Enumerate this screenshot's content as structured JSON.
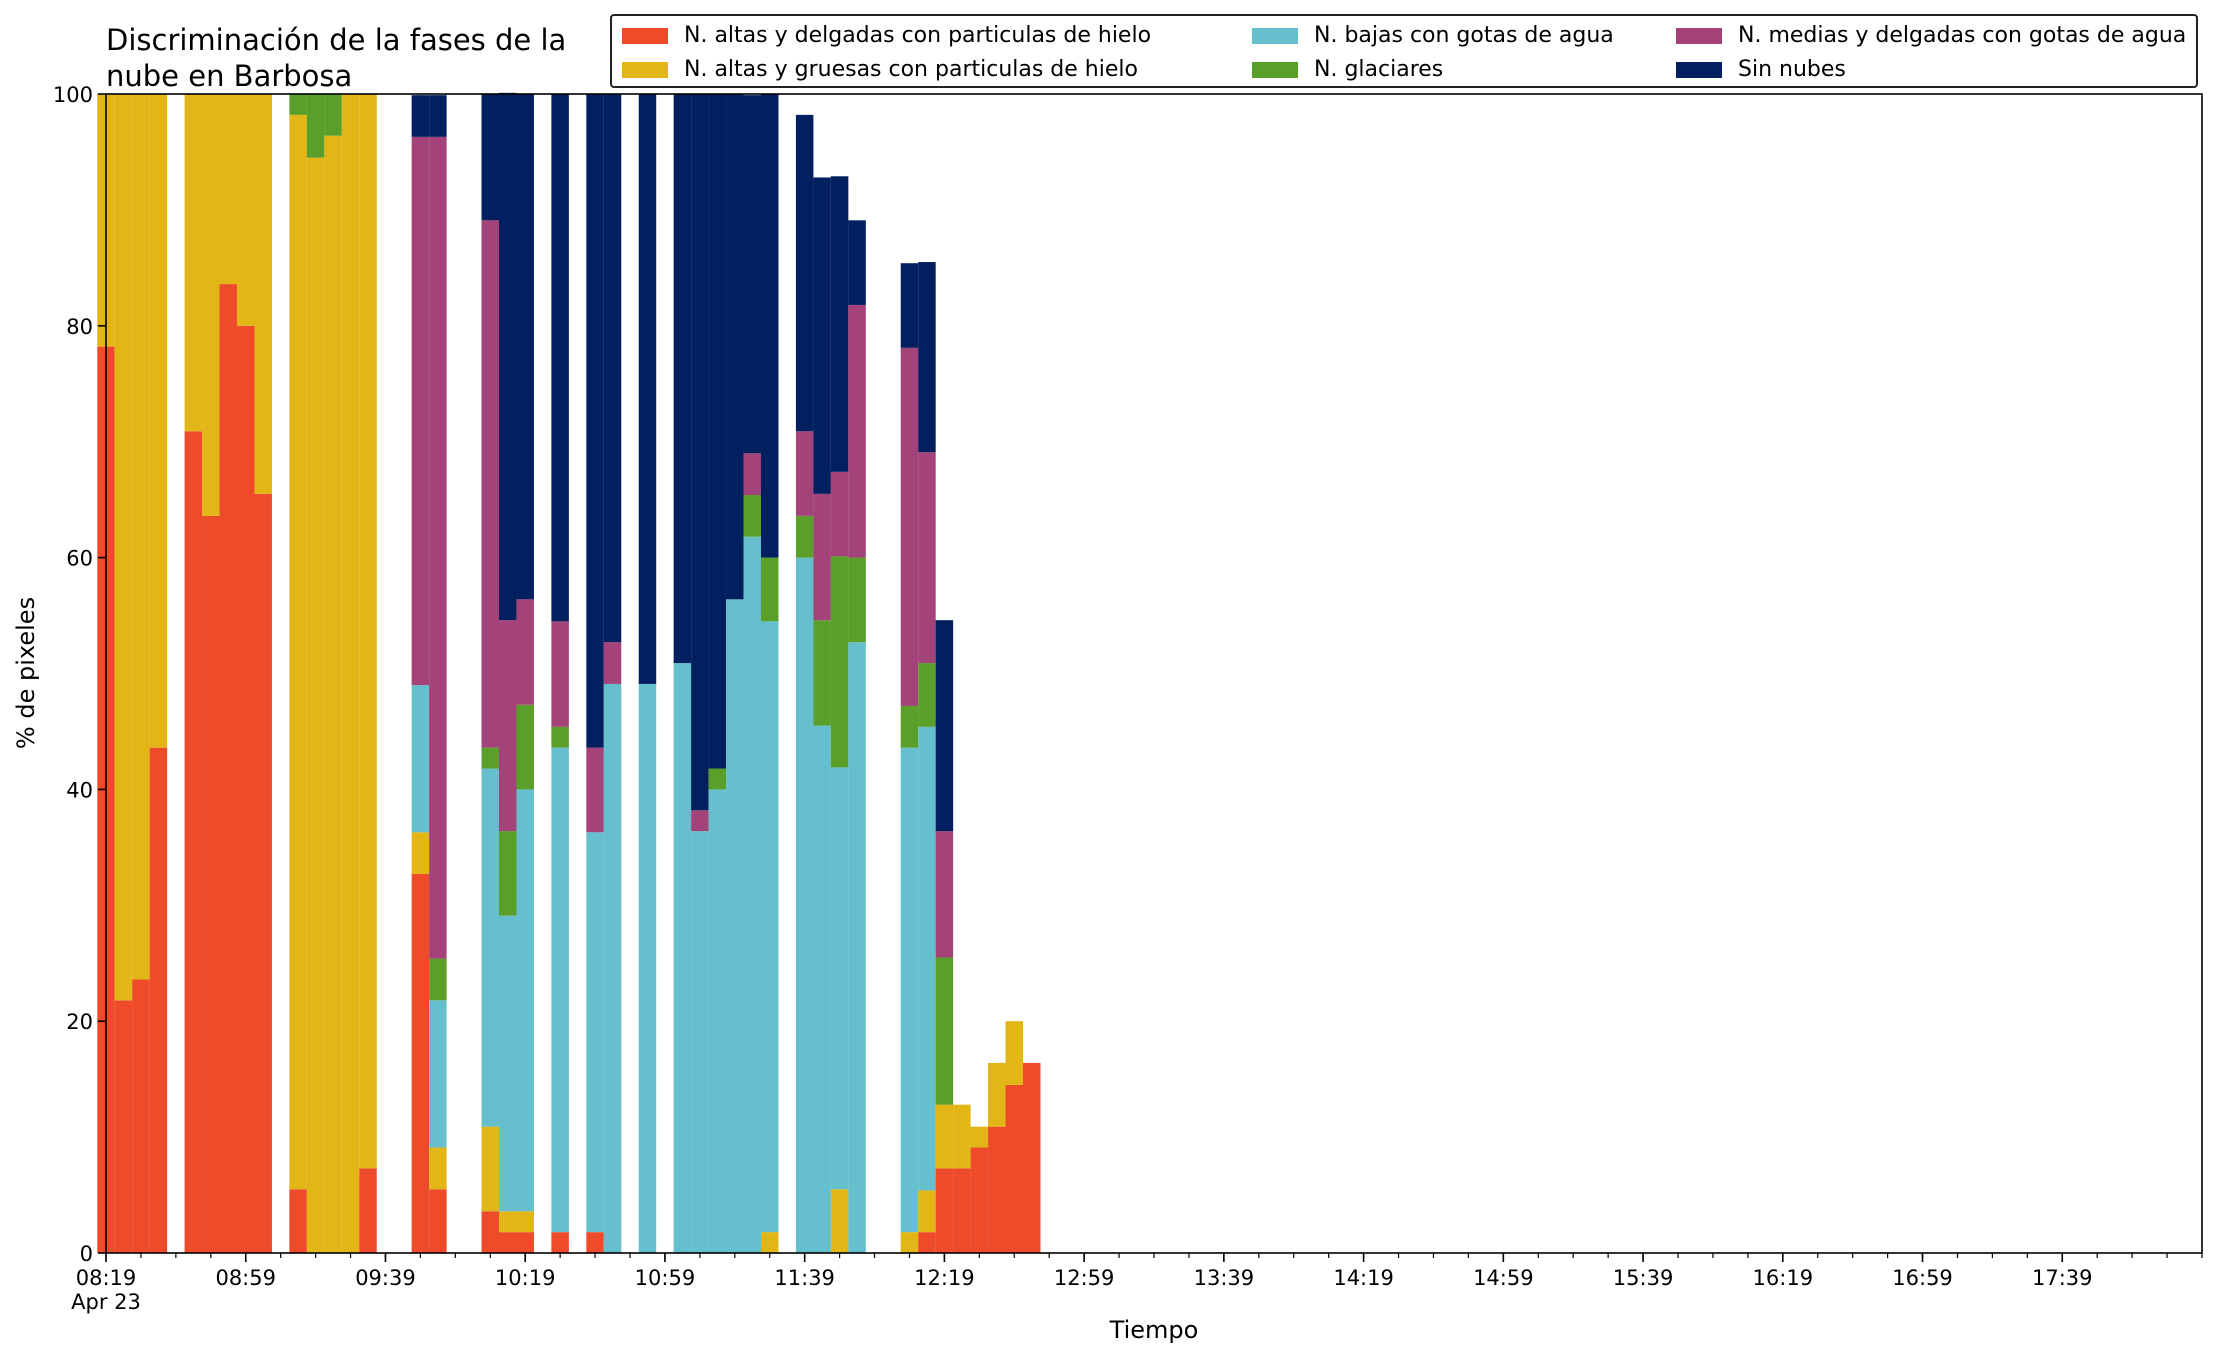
{
  "title": "Discriminación de la fases de la\nnube en Barbosa",
  "chart_data": {
    "type": "bar",
    "stacked": true,
    "title": "Discriminación de la fases de la\nnube en Barbosa",
    "xlabel": "Tiempo",
    "ylabel": "% de pixeles",
    "ylim": [
      0,
      100
    ],
    "yticks": [
      0,
      20,
      40,
      60,
      80,
      100
    ],
    "grid": false,
    "legend_position": "top-right",
    "x_start": "08:19",
    "x_end": "18:19",
    "x_tick_labels": [
      "08:19",
      "08:59",
      "09:39",
      "10:19",
      "10:59",
      "11:39",
      "12:19",
      "12:59",
      "13:39",
      "14:19",
      "14:59",
      "15:39",
      "16:19",
      "16:59",
      "17:39"
    ],
    "x_date_label": "Apr 23",
    "times": [
      "08:19",
      "08:24",
      "08:29",
      "08:34",
      "08:44",
      "08:49",
      "08:54",
      "08:59",
      "09:04",
      "09:14",
      "09:19",
      "09:24",
      "09:29",
      "09:34",
      "09:49",
      "09:54",
      "10:09",
      "10:14",
      "10:19",
      "10:29",
      "10:39",
      "10:44",
      "10:54",
      "11:04",
      "11:09",
      "11:14",
      "11:19",
      "11:24",
      "11:29",
      "11:39",
      "11:44",
      "11:49",
      "11:54",
      "12:09",
      "12:14",
      "12:19",
      "12:24",
      "12:29",
      "12:34",
      "12:39",
      "12:44",
      "12:54",
      "12:59",
      "13:04"
    ],
    "series": [
      {
        "name": "N. altas y delgadas con particulas de hielo",
        "color": "#ee4b2b",
        "values": [
          78.2,
          21.8,
          23.6,
          43.6,
          70.9,
          63.6,
          83.6,
          80.0,
          65.5,
          5.5,
          0,
          0,
          0,
          7.3,
          32.7,
          5.5,
          3.6,
          1.8,
          1.8,
          1.8,
          1.8,
          0,
          0,
          0,
          0,
          0,
          0,
          0,
          0,
          0,
          0,
          0,
          0,
          0,
          1.8,
          7.3,
          7.3,
          9.1,
          10.9,
          14.5,
          16.4,
          0,
          0,
          0
        ]
      },
      {
        "name": "N. altas y gruesas con particulas de hielo",
        "color": "#e3b617",
        "values": [
          21.8,
          78.2,
          76.4,
          56.4,
          29.1,
          36.4,
          16.4,
          20.0,
          34.5,
          92.7,
          94.5,
          96.4,
          100,
          92.7,
          3.6,
          3.6,
          7.3,
          1.8,
          1.8,
          0,
          0,
          0,
          0,
          0,
          0,
          0,
          0,
          0,
          1.8,
          0,
          0,
          5.5,
          0,
          1.8,
          3.6,
          5.5,
          5.5,
          1.8,
          5.5,
          5.5,
          0,
          0,
          0,
          0
        ]
      },
      {
        "name": "N. bajas con gotas de agua",
        "color": "#66bfcc",
        "values": [
          0,
          0,
          0,
          0,
          0,
          0,
          0,
          0,
          0,
          0,
          0,
          0,
          0,
          0,
          12.7,
          12.7,
          30.9,
          25.5,
          36.4,
          41.8,
          34.5,
          49.1,
          49.1,
          50.9,
          36.4,
          40.0,
          56.4,
          61.8,
          52.7,
          60.0,
          45.5,
          36.4,
          52.7,
          41.8,
          40.0,
          0,
          0,
          0,
          0,
          0,
          0,
          0,
          0,
          0
        ]
      },
      {
        "name": "N. glaciares",
        "color": "#5a9f29",
        "values": [
          0,
          0,
          0,
          0,
          0,
          0,
          0,
          0,
          0,
          1.8,
          5.5,
          3.6,
          0,
          0,
          0,
          3.6,
          1.8,
          7.3,
          7.3,
          1.8,
          0,
          0,
          0,
          0,
          0,
          1.8,
          0,
          3.6,
          5.5,
          3.6,
          9.1,
          18.2,
          7.3,
          3.6,
          5.5,
          12.7,
          0,
          0,
          0,
          0,
          0,
          0,
          0,
          0
        ]
      },
      {
        "name": "N. medias y delgadas con gotas de agua",
        "color": "#a4437a",
        "values": [
          0,
          0,
          0,
          0,
          0,
          0,
          0,
          0,
          0,
          0,
          0,
          0,
          0,
          0,
          47.3,
          70.9,
          45.5,
          18.2,
          9.1,
          9.1,
          7.3,
          3.6,
          0,
          0,
          1.8,
          0,
          0,
          3.6,
          0,
          7.3,
          10.9,
          7.3,
          21.8,
          30.9,
          18.2,
          10.9,
          0,
          0,
          0,
          0,
          0,
          0,
          0,
          0
        ]
      },
      {
        "name": "Sin nubes",
        "color": "#021f5f",
        "values": [
          0,
          0,
          0,
          0,
          0,
          0,
          0,
          0,
          0,
          0,
          0,
          0,
          0,
          0,
          3.6,
          3.6,
          10.9,
          45.5,
          43.6,
          45.5,
          56.4,
          47.3,
          50.9,
          49.1,
          61.8,
          58.2,
          43.6,
          30.9,
          40.0,
          27.3,
          27.3,
          25.5,
          7.3,
          7.3,
          16.4,
          18.2,
          0,
          0,
          0,
          0,
          0,
          0,
          0,
          0
        ]
      }
    ]
  }
}
